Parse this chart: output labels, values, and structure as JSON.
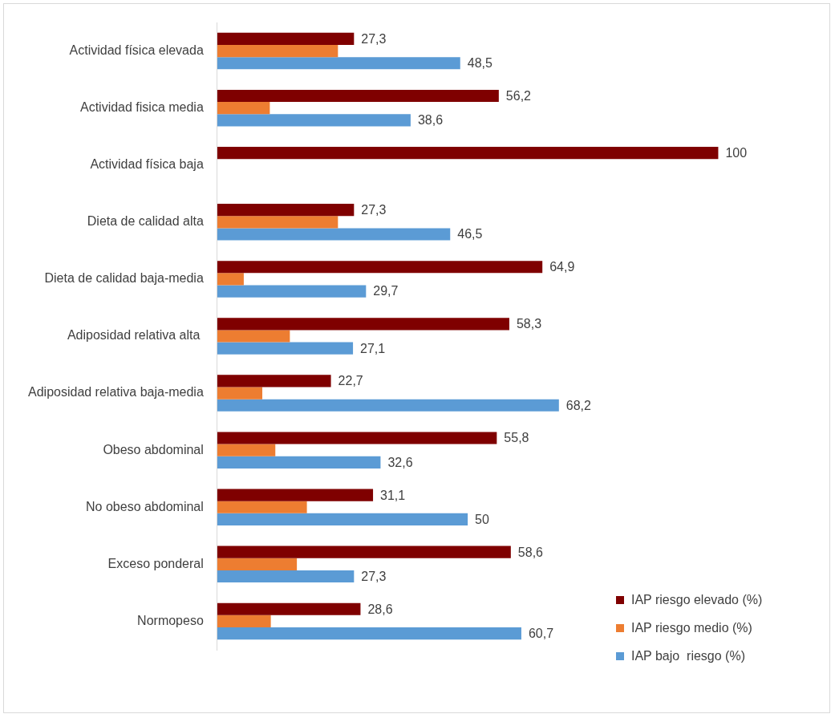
{
  "chart_data": {
    "type": "bar",
    "orientation": "horizontal",
    "legend": "bottom right",
    "categories": [
      "Actividad física elevada",
      "Actividad fisica media",
      "Actividad física baja",
      "Dieta de calidad alta",
      "Dieta de calidad baja-media",
      "Adiposidad relativa alta ",
      "Adiposidad relativa baja-media",
      "Obeso abdominal",
      "No obeso abdominal",
      "Exceso ponderal",
      "Normopeso"
    ],
    "series": [
      {
        "name": "IAP riesgo elevado (%)",
        "color": "#7f0000",
        "values": [
          27.3,
          56.2,
          100,
          27.3,
          64.9,
          58.3,
          22.7,
          55.8,
          31.1,
          58.6,
          28.6
        ],
        "value_labels": [
          "27,3",
          "56,2",
          "100",
          "27,3",
          "64,9",
          "58,3",
          "22,7",
          "55,8",
          "31,1",
          "58,6",
          "28,6"
        ]
      },
      {
        "name": "IAP riesgo medio (%)",
        "color": "#ed7d31",
        "values": [
          24.1,
          10.5,
          null,
          24.1,
          5.3,
          14.5,
          9.0,
          11.6,
          17.9,
          15.9,
          10.7
        ]
      },
      {
        "name": "IAP bajo  riesgo (%)",
        "color": "#5b9bd5",
        "values": [
          48.5,
          38.6,
          null,
          46.5,
          29.7,
          27.1,
          68.2,
          32.6,
          50,
          27.3,
          60.7
        ],
        "value_labels": [
          "48,5",
          "38,6",
          null,
          "46,5",
          "29,7",
          "27,1",
          "68,2",
          "32,6",
          "50",
          "27,3",
          "60,7"
        ]
      }
    ]
  }
}
